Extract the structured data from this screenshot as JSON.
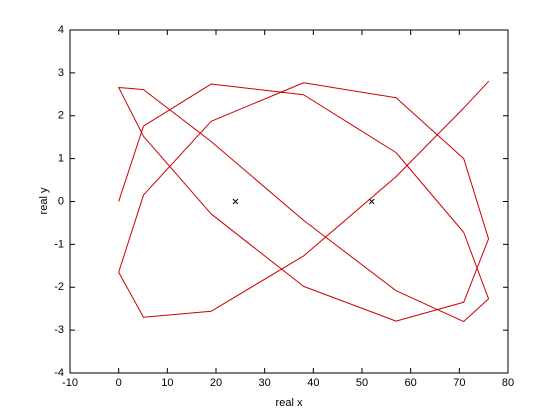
{
  "chart_data": {
    "type": "line",
    "xlabel": "real x",
    "ylabel": "real y",
    "xlim": [
      -10,
      80
    ],
    "xticks": [
      -10,
      0,
      10,
      20,
      30,
      40,
      50,
      60,
      70,
      80
    ],
    "ylim": [
      -4,
      4
    ],
    "yticks": [
      -4,
      -3,
      -2,
      -1,
      0,
      1,
      2,
      3,
      4
    ],
    "series": [
      {
        "color": "#cc0000",
        "x": [
          0,
          5.1,
          19,
          38,
          57,
          70.9,
          76,
          70.9,
          57,
          38,
          19,
          5.1,
          0,
          5.1,
          19,
          38,
          57,
          70.9,
          76,
          70.9,
          57,
          38,
          19,
          5.1,
          0,
          5.1,
          19,
          38,
          57,
          70.9,
          76,
          70.9,
          57,
          38,
          19,
          5.1,
          0
        ],
        "values": [
          0,
          1.76,
          2.74,
          2.49,
          1.14,
          -0.72,
          -2.27,
          -2.8,
          -2.08,
          -0.44,
          1.4,
          2.61,
          2.66,
          1.52,
          -0.29,
          -1.98,
          -2.79,
          -2.35,
          -0.87,
          1.0,
          2.42,
          2.77,
          1.87,
          0.15,
          -1.65,
          -2.7,
          -2.56,
          -1.27,
          0.58,
          2.18,
          2.8,
          2.18,
          0.58,
          -1.27,
          -2.56,
          -2.7,
          -1.65
        ]
      }
    ],
    "markers": {
      "color": "#000000",
      "x": [
        24,
        52
      ],
      "y": [
        0,
        0
      ]
    }
  }
}
